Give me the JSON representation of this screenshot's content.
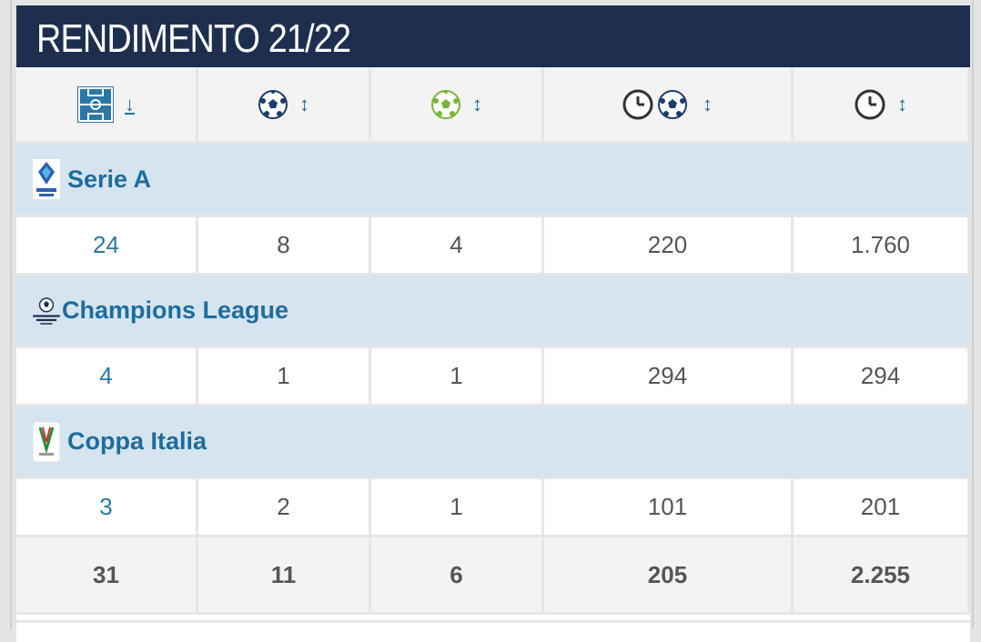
{
  "title": "RENDIMENTO 21/22",
  "headers": [
    {
      "icon": "pitch-appearances-icon",
      "sort": "↓"
    },
    {
      "icon": "ball-goals-icon",
      "sort": "↕"
    },
    {
      "icon": "green-ball-assists-icon",
      "sort": "↕"
    },
    {
      "icon": "clock-ball-minutes-per-goal-icon",
      "sort": "↕"
    },
    {
      "icon": "clock-minutes-icon",
      "sort": "↕"
    }
  ],
  "competitions": [
    {
      "name": "Serie A",
      "logo": "serie-a-logo",
      "values": [
        "24",
        "8",
        "4",
        "220",
        "1.760"
      ]
    },
    {
      "name": "Champions League",
      "logo": "champions-league-logo",
      "values": [
        "4",
        "1",
        "1",
        "294",
        "294"
      ]
    },
    {
      "name": "Coppa Italia",
      "logo": "coppa-italia-logo",
      "values": [
        "3",
        "2",
        "1",
        "101",
        "201"
      ]
    }
  ],
  "totals": [
    "31",
    "11",
    "6",
    "205",
    "2.255"
  ],
  "colors": {
    "title_bar": "#1d2e4f",
    "competition_row": "#d6e4ef",
    "link_blue": "#2a78a8",
    "header_bg": "#f3f3f3"
  }
}
